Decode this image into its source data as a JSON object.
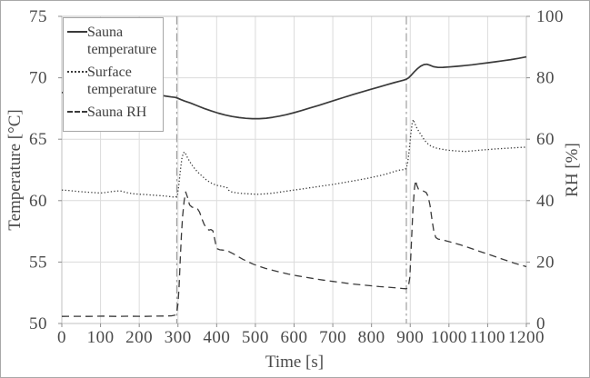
{
  "chart_data": {
    "type": "line",
    "title": "",
    "xlabel": "Time [s]",
    "ylabel_left": "Temperature [°C]",
    "ylabel_right": "RH [%]",
    "x_range": [
      0,
      1200
    ],
    "temp_range": [
      50,
      75
    ],
    "rh_range": [
      0,
      100
    ],
    "x_ticks": [
      0,
      100,
      200,
      300,
      400,
      500,
      600,
      700,
      800,
      900,
      1000,
      1100,
      1200
    ],
    "temp_ticks": [
      50,
      55,
      60,
      65,
      70,
      75
    ],
    "rh_ticks": [
      0,
      20,
      40,
      60,
      80,
      100
    ],
    "grid": true,
    "legend_position": "top-left",
    "event_lines_s": [
      297,
      890
    ],
    "colors": {
      "line": "#3a3a3a",
      "grid": "#dcdcdc",
      "plot_border": "#c0c0c0",
      "tick": "#8c8c8c",
      "axis_text": "#4a4a4a",
      "event_line": "#9e9e9e",
      "legend_border": "#a6a6a6"
    },
    "series": [
      {
        "name": "Sauna temperature",
        "axis": "temp",
        "style": "solid",
        "points": [
          [
            0,
            68.8
          ],
          [
            40,
            68.75
          ],
          [
            80,
            68.7
          ],
          [
            120,
            68.68
          ],
          [
            160,
            68.64
          ],
          [
            200,
            68.6
          ],
          [
            230,
            68.62
          ],
          [
            255,
            68.58
          ],
          [
            270,
            68.5
          ],
          [
            283,
            68.44
          ],
          [
            293,
            68.4
          ],
          [
            300,
            68.33
          ],
          [
            308,
            68.22
          ],
          [
            318,
            68.1
          ],
          [
            332,
            67.95
          ],
          [
            350,
            67.72
          ],
          [
            368,
            67.5
          ],
          [
            386,
            67.3
          ],
          [
            404,
            67.12
          ],
          [
            422,
            66.97
          ],
          [
            440,
            66.85
          ],
          [
            458,
            66.76
          ],
          [
            475,
            66.7
          ],
          [
            492,
            66.67
          ],
          [
            510,
            66.67
          ],
          [
            528,
            66.71
          ],
          [
            545,
            66.78
          ],
          [
            562,
            66.88
          ],
          [
            580,
            67.0
          ],
          [
            600,
            67.16
          ],
          [
            620,
            67.34
          ],
          [
            642,
            67.55
          ],
          [
            664,
            67.76
          ],
          [
            686,
            67.98
          ],
          [
            708,
            68.2
          ],
          [
            730,
            68.42
          ],
          [
            752,
            68.63
          ],
          [
            774,
            68.84
          ],
          [
            796,
            69.04
          ],
          [
            818,
            69.24
          ],
          [
            840,
            69.44
          ],
          [
            858,
            69.6
          ],
          [
            872,
            69.72
          ],
          [
            882,
            69.8
          ],
          [
            890,
            69.88
          ],
          [
            896,
            70.0
          ],
          [
            903,
            70.22
          ],
          [
            911,
            70.5
          ],
          [
            919,
            70.75
          ],
          [
            927,
            70.95
          ],
          [
            935,
            71.07
          ],
          [
            943,
            71.1
          ],
          [
            951,
            71.02
          ],
          [
            960,
            70.9
          ],
          [
            972,
            70.84
          ],
          [
            985,
            70.85
          ],
          [
            1000,
            70.88
          ],
          [
            1020,
            70.93
          ],
          [
            1040,
            70.99
          ],
          [
            1060,
            71.06
          ],
          [
            1080,
            71.14
          ],
          [
            1100,
            71.22
          ],
          [
            1120,
            71.3
          ],
          [
            1140,
            71.39
          ],
          [
            1160,
            71.48
          ],
          [
            1180,
            71.58
          ],
          [
            1200,
            71.7
          ]
        ]
      },
      {
        "name": "Surface temperature",
        "axis": "temp",
        "style": "dotted",
        "points": [
          [
            0,
            60.86
          ],
          [
            20,
            60.82
          ],
          [
            40,
            60.75
          ],
          [
            60,
            60.7
          ],
          [
            80,
            60.66
          ],
          [
            100,
            60.62
          ],
          [
            112,
            60.66
          ],
          [
            125,
            60.72
          ],
          [
            138,
            60.77
          ],
          [
            150,
            60.8
          ],
          [
            160,
            60.72
          ],
          [
            172,
            60.62
          ],
          [
            185,
            60.56
          ],
          [
            200,
            60.52
          ],
          [
            215,
            60.5
          ],
          [
            230,
            60.46
          ],
          [
            245,
            60.43
          ],
          [
            258,
            60.4
          ],
          [
            270,
            60.36
          ],
          [
            282,
            60.32
          ],
          [
            292,
            60.28
          ],
          [
            298,
            60.35
          ],
          [
            302,
            61.2
          ],
          [
            306,
            62.4
          ],
          [
            310,
            63.4
          ],
          [
            314,
            63.9
          ],
          [
            318,
            63.95
          ],
          [
            323,
            63.6
          ],
          [
            330,
            63.2
          ],
          [
            338,
            62.82
          ],
          [
            346,
            62.5
          ],
          [
            355,
            62.2
          ],
          [
            364,
            61.95
          ],
          [
            373,
            61.7
          ],
          [
            382,
            61.5
          ],
          [
            391,
            61.35
          ],
          [
            400,
            61.25
          ],
          [
            410,
            61.18
          ],
          [
            420,
            61.12
          ],
          [
            427,
            61.05
          ],
          [
            431,
            60.85
          ],
          [
            438,
            60.72
          ],
          [
            448,
            60.65
          ],
          [
            460,
            60.6
          ],
          [
            475,
            60.57
          ],
          [
            490,
            60.54
          ],
          [
            505,
            60.52
          ],
          [
            520,
            60.54
          ],
          [
            535,
            60.58
          ],
          [
            550,
            60.63
          ],
          [
            565,
            60.7
          ],
          [
            580,
            60.77
          ],
          [
            595,
            60.84
          ],
          [
            610,
            60.9
          ],
          [
            625,
            60.97
          ],
          [
            640,
            61.04
          ],
          [
            655,
            61.11
          ],
          [
            670,
            61.18
          ],
          [
            685,
            61.25
          ],
          [
            700,
            61.32
          ],
          [
            715,
            61.4
          ],
          [
            730,
            61.48
          ],
          [
            745,
            61.56
          ],
          [
            760,
            61.64
          ],
          [
            775,
            61.73
          ],
          [
            790,
            61.82
          ],
          [
            805,
            61.92
          ],
          [
            820,
            62.02
          ],
          [
            835,
            62.14
          ],
          [
            848,
            62.26
          ],
          [
            860,
            62.38
          ],
          [
            870,
            62.47
          ],
          [
            878,
            62.52
          ],
          [
            884,
            62.5
          ],
          [
            889,
            62.6
          ],
          [
            893,
            63.0
          ],
          [
            897,
            64.0
          ],
          [
            901,
            65.3
          ],
          [
            905,
            66.3
          ],
          [
            908,
            66.6
          ],
          [
            911,
            66.35
          ],
          [
            915,
            66.05
          ],
          [
            920,
            65.75
          ],
          [
            926,
            65.45
          ],
          [
            933,
            65.1
          ],
          [
            940,
            64.8
          ],
          [
            948,
            64.55
          ],
          [
            956,
            64.4
          ],
          [
            965,
            64.3
          ],
          [
            975,
            64.22
          ],
          [
            988,
            64.15
          ],
          [
            1000,
            64.1
          ],
          [
            1014,
            64.06
          ],
          [
            1028,
            64.02
          ],
          [
            1042,
            64.0
          ],
          [
            1056,
            64.04
          ],
          [
            1070,
            64.08
          ],
          [
            1084,
            64.12
          ],
          [
            1098,
            64.15
          ],
          [
            1112,
            64.19
          ],
          [
            1128,
            64.22
          ],
          [
            1144,
            64.25
          ],
          [
            1160,
            64.28
          ],
          [
            1178,
            64.32
          ],
          [
            1200,
            64.36
          ]
        ]
      },
      {
        "name": "Sauna RH",
        "axis": "rh",
        "style": "dashed",
        "points": [
          [
            0,
            2.3
          ],
          [
            35,
            2.35
          ],
          [
            70,
            2.3
          ],
          [
            105,
            2.4
          ],
          [
            140,
            2.3
          ],
          [
            175,
            2.38
          ],
          [
            210,
            2.3
          ],
          [
            240,
            2.4
          ],
          [
            265,
            2.42
          ],
          [
            283,
            2.5
          ],
          [
            292,
            2.7
          ],
          [
            297,
            3.6
          ],
          [
            300,
            6.5
          ],
          [
            303,
            12
          ],
          [
            306,
            21
          ],
          [
            309,
            29
          ],
          [
            312,
            35
          ],
          [
            316,
            40
          ],
          [
            320,
            42.8
          ],
          [
            325,
            41
          ],
          [
            330,
            38.6
          ],
          [
            336,
            37.9
          ],
          [
            343,
            37.6
          ],
          [
            350,
            37.5
          ],
          [
            356,
            36.2
          ],
          [
            362,
            34
          ],
          [
            368,
            32.2
          ],
          [
            374,
            31
          ],
          [
            380,
            30.4
          ],
          [
            385,
            30.6
          ],
          [
            390,
            30.2
          ],
          [
            394,
            28
          ],
          [
            398,
            25.5
          ],
          [
            402,
            24.3
          ],
          [
            408,
            24
          ],
          [
            415,
            23.9
          ],
          [
            423,
            23.8
          ],
          [
            432,
            23.4
          ],
          [
            443,
            22.7
          ],
          [
            455,
            21.8
          ],
          [
            468,
            20.9
          ],
          [
            481,
            20.1
          ],
          [
            495,
            19.3
          ],
          [
            510,
            18.6
          ],
          [
            527,
            17.9
          ],
          [
            545,
            17.3
          ],
          [
            565,
            16.7
          ],
          [
            585,
            16.1
          ],
          [
            605,
            15.6
          ],
          [
            628,
            15.1
          ],
          [
            652,
            14.6
          ],
          [
            676,
            14.1
          ],
          [
            700,
            13.7
          ],
          [
            724,
            13.3
          ],
          [
            748,
            12.9
          ],
          [
            772,
            12.6
          ],
          [
            796,
            12.3
          ],
          [
            820,
            12.0
          ],
          [
            844,
            11.8
          ],
          [
            864,
            11.6
          ],
          [
            880,
            11.4
          ],
          [
            890,
            11.3
          ],
          [
            895,
            11.8
          ],
          [
            899,
            15
          ],
          [
            903,
            26
          ],
          [
            907,
            37
          ],
          [
            911,
            44
          ],
          [
            914,
            46.6
          ],
          [
            917,
            45
          ],
          [
            921,
            43.8
          ],
          [
            927,
            43.4
          ],
          [
            934,
            43.1
          ],
          [
            941,
            42.7
          ],
          [
            946,
            41.5
          ],
          [
            951,
            38.5
          ],
          [
            956,
            34
          ],
          [
            961,
            30
          ],
          [
            966,
            28.0
          ],
          [
            972,
            27.5
          ],
          [
            980,
            27.3
          ],
          [
            990,
            27.0
          ],
          [
            1002,
            26.6
          ],
          [
            1016,
            26.1
          ],
          [
            1030,
            25.6
          ],
          [
            1044,
            25.0
          ],
          [
            1058,
            24.4
          ],
          [
            1072,
            23.8
          ],
          [
            1086,
            23.2
          ],
          [
            1100,
            22.6
          ],
          [
            1114,
            22.0
          ],
          [
            1128,
            21.4
          ],
          [
            1142,
            20.8
          ],
          [
            1156,
            20.2
          ],
          [
            1170,
            19.6
          ],
          [
            1184,
            19.1
          ],
          [
            1200,
            18.5
          ]
        ]
      }
    ]
  }
}
